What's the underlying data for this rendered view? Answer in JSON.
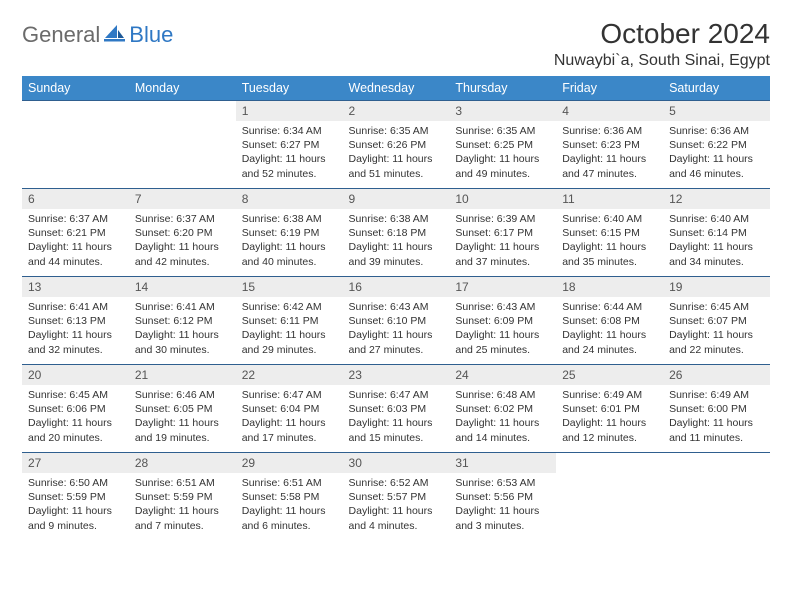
{
  "brand": {
    "part1": "General",
    "part2": "Blue"
  },
  "title": "October 2024",
  "location": "Nuwaybi`a, South Sinai, Egypt",
  "header_color": "#3b87c8",
  "daynum_bg": "#ededed",
  "rule_color": "#2f5f8f",
  "logo_color": "#2f78c4",
  "text_color": "#333333",
  "day_headers": [
    "Sunday",
    "Monday",
    "Tuesday",
    "Wednesday",
    "Thursday",
    "Friday",
    "Saturday"
  ],
  "font_family": "Arial, Helvetica, sans-serif",
  "title_fontsize": 28,
  "location_fontsize": 16,
  "header_fontsize": 12.5,
  "body_fontsize": 10.5,
  "weeks": [
    [
      null,
      null,
      {
        "n": "1",
        "sr": "6:34 AM",
        "ss": "6:27 PM",
        "dl": "11 hours and 52 minutes."
      },
      {
        "n": "2",
        "sr": "6:35 AM",
        "ss": "6:26 PM",
        "dl": "11 hours and 51 minutes."
      },
      {
        "n": "3",
        "sr": "6:35 AM",
        "ss": "6:25 PM",
        "dl": "11 hours and 49 minutes."
      },
      {
        "n": "4",
        "sr": "6:36 AM",
        "ss": "6:23 PM",
        "dl": "11 hours and 47 minutes."
      },
      {
        "n": "5",
        "sr": "6:36 AM",
        "ss": "6:22 PM",
        "dl": "11 hours and 46 minutes."
      }
    ],
    [
      {
        "n": "6",
        "sr": "6:37 AM",
        "ss": "6:21 PM",
        "dl": "11 hours and 44 minutes."
      },
      {
        "n": "7",
        "sr": "6:37 AM",
        "ss": "6:20 PM",
        "dl": "11 hours and 42 minutes."
      },
      {
        "n": "8",
        "sr": "6:38 AM",
        "ss": "6:19 PM",
        "dl": "11 hours and 40 minutes."
      },
      {
        "n": "9",
        "sr": "6:38 AM",
        "ss": "6:18 PM",
        "dl": "11 hours and 39 minutes."
      },
      {
        "n": "10",
        "sr": "6:39 AM",
        "ss": "6:17 PM",
        "dl": "11 hours and 37 minutes."
      },
      {
        "n": "11",
        "sr": "6:40 AM",
        "ss": "6:15 PM",
        "dl": "11 hours and 35 minutes."
      },
      {
        "n": "12",
        "sr": "6:40 AM",
        "ss": "6:14 PM",
        "dl": "11 hours and 34 minutes."
      }
    ],
    [
      {
        "n": "13",
        "sr": "6:41 AM",
        "ss": "6:13 PM",
        "dl": "11 hours and 32 minutes."
      },
      {
        "n": "14",
        "sr": "6:41 AM",
        "ss": "6:12 PM",
        "dl": "11 hours and 30 minutes."
      },
      {
        "n": "15",
        "sr": "6:42 AM",
        "ss": "6:11 PM",
        "dl": "11 hours and 29 minutes."
      },
      {
        "n": "16",
        "sr": "6:43 AM",
        "ss": "6:10 PM",
        "dl": "11 hours and 27 minutes."
      },
      {
        "n": "17",
        "sr": "6:43 AM",
        "ss": "6:09 PM",
        "dl": "11 hours and 25 minutes."
      },
      {
        "n": "18",
        "sr": "6:44 AM",
        "ss": "6:08 PM",
        "dl": "11 hours and 24 minutes."
      },
      {
        "n": "19",
        "sr": "6:45 AM",
        "ss": "6:07 PM",
        "dl": "11 hours and 22 minutes."
      }
    ],
    [
      {
        "n": "20",
        "sr": "6:45 AM",
        "ss": "6:06 PM",
        "dl": "11 hours and 20 minutes."
      },
      {
        "n": "21",
        "sr": "6:46 AM",
        "ss": "6:05 PM",
        "dl": "11 hours and 19 minutes."
      },
      {
        "n": "22",
        "sr": "6:47 AM",
        "ss": "6:04 PM",
        "dl": "11 hours and 17 minutes."
      },
      {
        "n": "23",
        "sr": "6:47 AM",
        "ss": "6:03 PM",
        "dl": "11 hours and 15 minutes."
      },
      {
        "n": "24",
        "sr": "6:48 AM",
        "ss": "6:02 PM",
        "dl": "11 hours and 14 minutes."
      },
      {
        "n": "25",
        "sr": "6:49 AM",
        "ss": "6:01 PM",
        "dl": "11 hours and 12 minutes."
      },
      {
        "n": "26",
        "sr": "6:49 AM",
        "ss": "6:00 PM",
        "dl": "11 hours and 11 minutes."
      }
    ],
    [
      {
        "n": "27",
        "sr": "6:50 AM",
        "ss": "5:59 PM",
        "dl": "11 hours and 9 minutes."
      },
      {
        "n": "28",
        "sr": "6:51 AM",
        "ss": "5:59 PM",
        "dl": "11 hours and 7 minutes."
      },
      {
        "n": "29",
        "sr": "6:51 AM",
        "ss": "5:58 PM",
        "dl": "11 hours and 6 minutes."
      },
      {
        "n": "30",
        "sr": "6:52 AM",
        "ss": "5:57 PM",
        "dl": "11 hours and 4 minutes."
      },
      {
        "n": "31",
        "sr": "6:53 AM",
        "ss": "5:56 PM",
        "dl": "11 hours and 3 minutes."
      },
      null,
      null
    ]
  ],
  "labels": {
    "sunrise": "Sunrise:",
    "sunset": "Sunset:",
    "daylight": "Daylight:"
  }
}
